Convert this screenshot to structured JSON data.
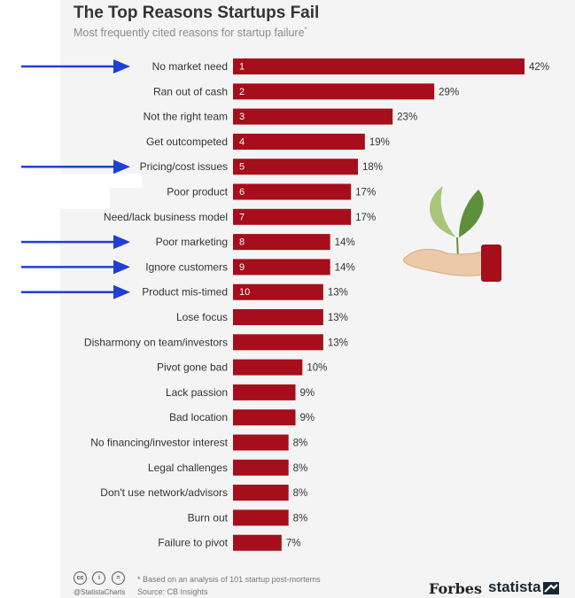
{
  "chart_data": {
    "type": "bar",
    "orientation": "horizontal",
    "title": "The Top Reasons Startups Fail",
    "subtitle": "Most frequently cited reasons for startup failure",
    "subtitle_marker": "*",
    "categories": [
      "No market need",
      "Ran out of cash",
      "Not the right team",
      "Get outcompeted",
      "Pricing/cost issues",
      "Poor product",
      "Need/lack business model",
      "Poor marketing",
      "Ignore customers",
      "Product mis-timed",
      "Lose focus",
      "Disharmony on team/investors",
      "Pivot gone bad",
      "Lack passion",
      "Bad location",
      "No financing/investor interest",
      "Legal challenges",
      "Don't use network/advisors",
      "Burn out",
      "Failure to pivot"
    ],
    "values": [
      42,
      29,
      23,
      19,
      18,
      17,
      17,
      14,
      14,
      13,
      13,
      13,
      10,
      9,
      9,
      8,
      8,
      8,
      8,
      7
    ],
    "value_labels": [
      "42%",
      "29%",
      "23%",
      "19%",
      "18%",
      "17%",
      "17%",
      "14%",
      "14%",
      "13%",
      "13%",
      "13%",
      "10%",
      "9%",
      "9%",
      "8%",
      "8%",
      "8%",
      "8%",
      "7%"
    ],
    "rank_labels": [
      "1",
      "2",
      "3",
      "4",
      "5",
      "6",
      "7",
      "8",
      "9",
      "10"
    ],
    "arrow_rows": [
      0,
      4,
      7,
      8,
      9
    ],
    "xlim": [
      0,
      42
    ],
    "grid": false,
    "legend": "none"
  },
  "colors": {
    "bar": "#a50e1a",
    "arrow": "#1f3fd6",
    "label": "#333333",
    "value": "#333333"
  },
  "illustration": {
    "name": "hand-holding-sprout-icon"
  },
  "footer": {
    "license_icons": [
      "cc",
      "i",
      "="
    ],
    "handle": "@StatistaCharts",
    "note": "* Based on an analysis of 101 startup post-mortems",
    "source": "Source: CB Insights",
    "brand_forbes": "Forbes",
    "brand_statista": "statista"
  }
}
